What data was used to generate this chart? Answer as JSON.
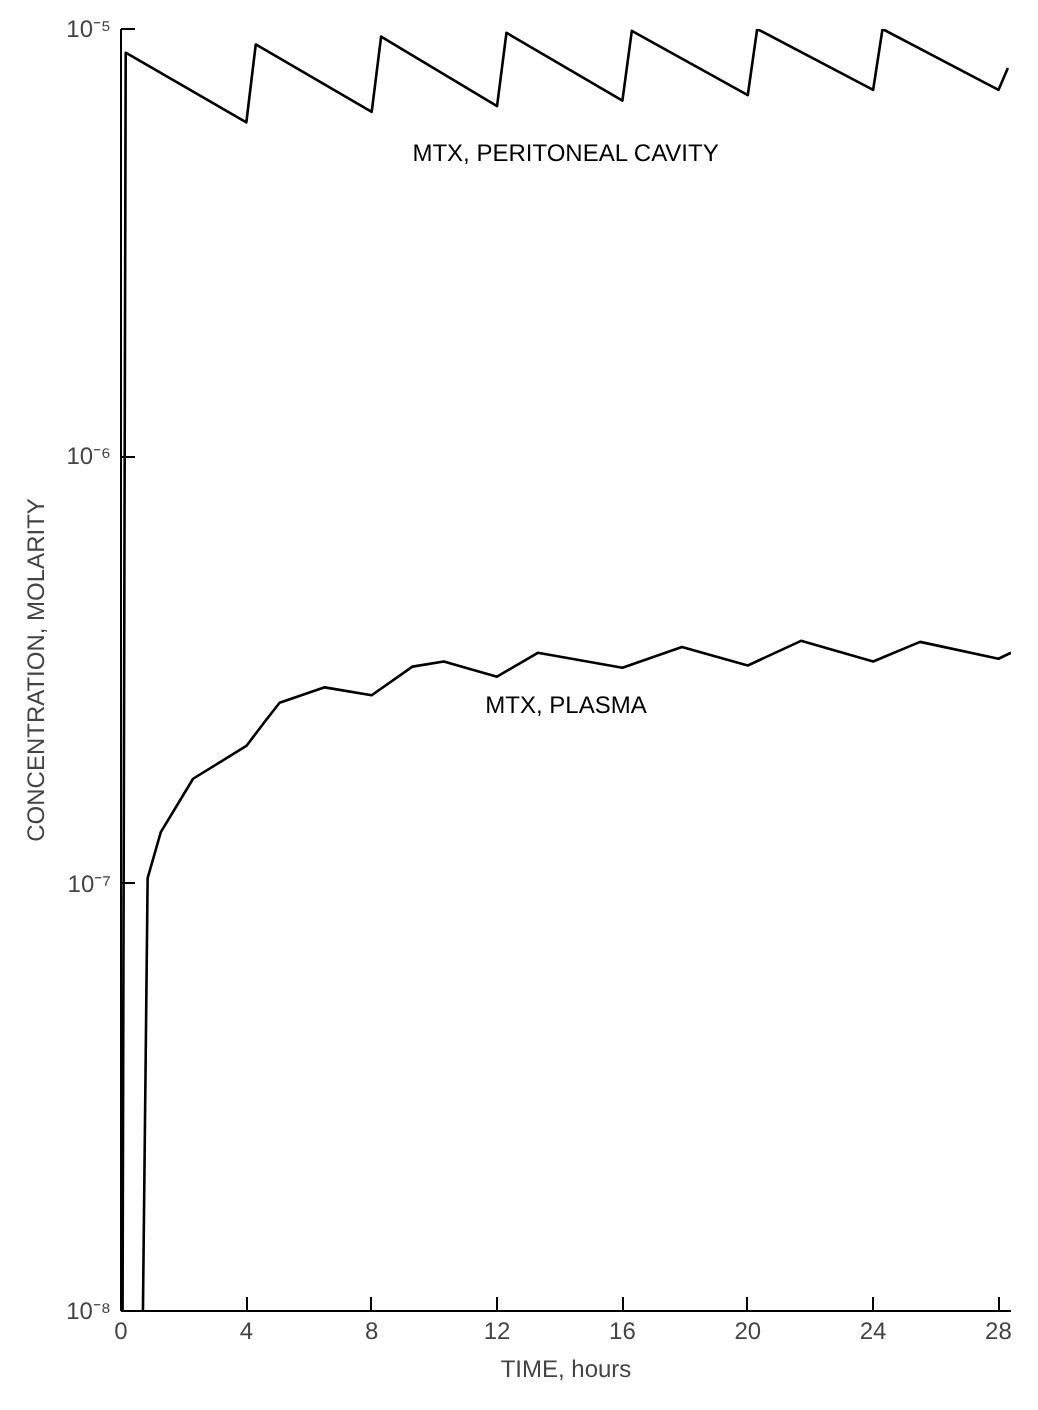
{
  "chart_data": {
    "type": "line",
    "xlabel": "TIME, hours",
    "ylabel": "CONCENTRATION, MOLARITY",
    "log": "y",
    "grid": false,
    "marker": "none",
    "line_style": "solid",
    "xlim": [
      0,
      28.4
    ],
    "ylim": [
      1e-08,
      1e-05
    ],
    "xticks": [
      0,
      4,
      8,
      12,
      16,
      20,
      24,
      28
    ],
    "yticks": [
      {
        "value": 1e-08,
        "label": "10⁻⁸"
      },
      {
        "value": 1e-07,
        "label": "10⁻⁷"
      },
      {
        "value": 1e-06,
        "label": "10⁻⁶"
      },
      {
        "value": 1e-05,
        "label": "10⁻⁵"
      }
    ],
    "series": [
      {
        "name": "MTX, PERITONEAL CAVITY",
        "color": "#000000",
        "x": [
          0.05,
          0.15,
          4.0,
          4.3,
          8.0,
          8.3,
          12.0,
          12.3,
          16.0,
          16.3,
          20.0,
          20.3,
          24.0,
          24.3,
          28.0,
          28.3
        ],
        "values": [
          1e-08,
          8.8e-06,
          6.05e-06,
          9.2e-06,
          6.4e-06,
          9.6e-06,
          6.6e-06,
          9.8e-06,
          6.8e-06,
          9.9e-06,
          7e-06,
          1e-05,
          7.2e-06,
          1e-05,
          7.2e-06,
          8.1e-06
        ]
      },
      {
        "name": "MTX, PLASMA",
        "color": "#000000",
        "x": [
          0.7,
          0.85,
          1.27,
          2.3,
          4.0,
          4.6,
          5.06,
          6.5,
          8.0,
          9.3,
          10.3,
          12.0,
          13.3,
          16.0,
          17.9,
          20.0,
          21.7,
          24.0,
          25.5,
          28.0,
          28.4
        ],
        "values": [
          1e-08,
          1.03e-07,
          1.32e-07,
          1.76e-07,
          2.1e-07,
          2.4e-07,
          2.65e-07,
          2.88e-07,
          2.76e-07,
          3.22e-07,
          3.31e-07,
          3.05e-07,
          3.47e-07,
          3.2e-07,
          3.58e-07,
          3.24e-07,
          3.7e-07,
          3.31e-07,
          3.68e-07,
          3.36e-07,
          3.47e-07
        ]
      }
    ]
  }
}
